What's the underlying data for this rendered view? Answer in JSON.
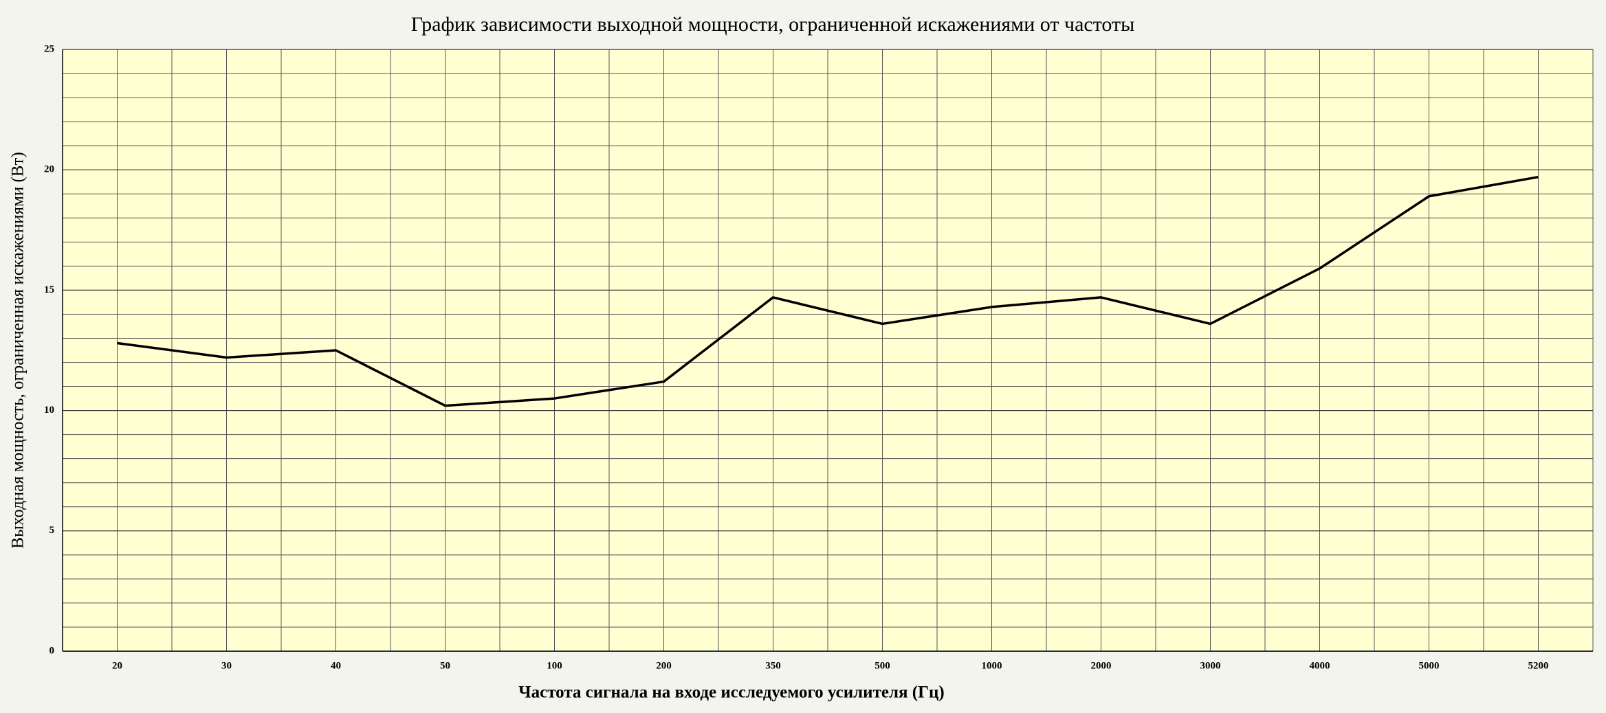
{
  "chart_data": {
    "type": "line",
    "title": "График зависимости выходной мощности, ограниченной искажениями от частоты",
    "x_label": "Частота сигнала на входе исследуемого усилителя (Гц)",
    "y_label": "Выходная мощность, ограниченная искажениями (Вт)",
    "categories": [
      "20",
      "30",
      "40",
      "50",
      "100",
      "200",
      "350",
      "500",
      "1000",
      "2000",
      "3000",
      "4000",
      "5000",
      "5200"
    ],
    "values": [
      12.8,
      12.2,
      12.5,
      10.2,
      10.5,
      11.2,
      14.7,
      13.6,
      14.3,
      14.7,
      13.6,
      15.9,
      18.9,
      19.7
    ],
    "color": "#000000",
    "ylim": [
      0,
      25
    ],
    "yticks": [
      0,
      5,
      10,
      15,
      20,
      25
    ],
    "grid": true
  }
}
